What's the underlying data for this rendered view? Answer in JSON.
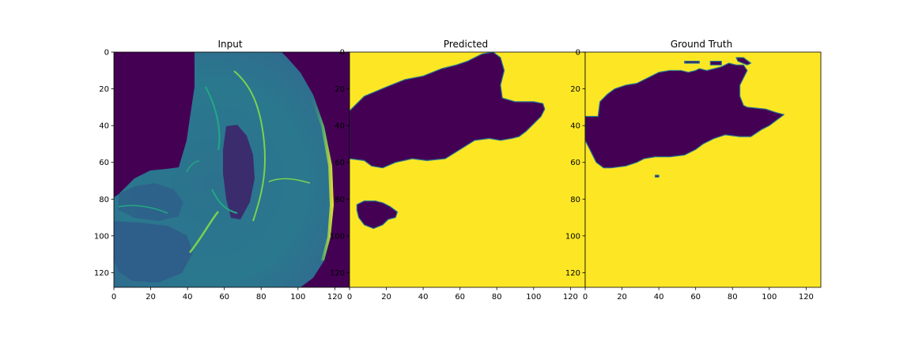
{
  "colors": {
    "dark_purple": "#440154",
    "yellow": "#fde725",
    "teal": "#2a788e",
    "green": "#22a884",
    "light_green": "#7ad151"
  },
  "chart_data": [
    {
      "type": "heatmap",
      "title": "Input",
      "colormap": "viridis",
      "xlim": [
        0,
        128
      ],
      "ylim": [
        128,
        0
      ],
      "xticks": [
        0,
        20,
        40,
        60,
        80,
        100,
        120
      ],
      "yticks": [
        0,
        20,
        40,
        60,
        80,
        100,
        120
      ],
      "xtick_labels": [
        "0",
        "20",
        "40",
        "60",
        "80",
        "100",
        "120"
      ],
      "ytick_labels": [
        "0",
        "20",
        "40",
        "60",
        "80",
        "100",
        "120"
      ],
      "content": "brain MRI slice"
    },
    {
      "type": "heatmap",
      "title": "Predicted",
      "colormap": "viridis",
      "xlim": [
        0,
        128
      ],
      "ylim": [
        128,
        0
      ],
      "xticks": [
        0,
        20,
        40,
        60,
        80,
        100,
        120
      ],
      "yticks": [
        0,
        20,
        40,
        60,
        80,
        100,
        120
      ],
      "xtick_labels": [
        "0",
        "20",
        "40",
        "60",
        "80",
        "100",
        "120"
      ],
      "ytick_labels": [
        "0",
        "20",
        "40",
        "60",
        "80",
        "100",
        "120"
      ],
      "regions": [
        {
          "value": 0,
          "polygon": [
            [
              0,
              32
            ],
            [
              8,
              24
            ],
            [
              20,
              19
            ],
            [
              30,
              15
            ],
            [
              40,
              13
            ],
            [
              50,
              9
            ],
            [
              58,
              7
            ],
            [
              64,
              5
            ],
            [
              72,
              1
            ],
            [
              78,
              0
            ],
            [
              82,
              3
            ],
            [
              84,
              10
            ],
            [
              82,
              18
            ],
            [
              83,
              25
            ],
            [
              90,
              27
            ],
            [
              100,
              27
            ],
            [
              105,
              28
            ],
            [
              106,
              31
            ],
            [
              104,
              35
            ],
            [
              100,
              39
            ],
            [
              96,
              43
            ],
            [
              92,
              46
            ],
            [
              88,
              47
            ],
            [
              82,
              48
            ],
            [
              76,
              47
            ],
            [
              68,
              48
            ],
            [
              60,
              53
            ],
            [
              52,
              58
            ],
            [
              42,
              59
            ],
            [
              34,
              58
            ],
            [
              25,
              60
            ],
            [
              18,
              63
            ],
            [
              12,
              62
            ],
            [
              8,
              59
            ],
            [
              0,
              58
            ]
          ]
        },
        {
          "value": 0,
          "polygon": [
            [
              4,
              83
            ],
            [
              8,
              81
            ],
            [
              14,
              81
            ],
            [
              18,
              82
            ],
            [
              22,
              84
            ],
            [
              26,
              87
            ],
            [
              25,
              90
            ],
            [
              21,
              91
            ],
            [
              18,
              94
            ],
            [
              13,
              96
            ],
            [
              8,
              94
            ],
            [
              5,
              90
            ],
            [
              4,
              86
            ]
          ]
        }
      ]
    },
    {
      "type": "heatmap",
      "title": "Ground Truth",
      "colormap": "viridis",
      "xlim": [
        0,
        128
      ],
      "ylim": [
        128,
        0
      ],
      "xticks": [
        0,
        20,
        40,
        60,
        80,
        100,
        120
      ],
      "yticks": [
        0,
        20,
        40,
        60,
        80,
        100,
        120
      ],
      "xtick_labels": [
        "0",
        "20",
        "40",
        "60",
        "80",
        "100",
        "120"
      ],
      "ytick_labels": [
        "0",
        "20",
        "40",
        "60",
        "80",
        "100",
        "120"
      ],
      "regions": [
        {
          "value": 0,
          "polygon": [
            [
              0,
              35
            ],
            [
              7,
              35
            ],
            [
              8,
              27
            ],
            [
              12,
              23
            ],
            [
              16,
              20
            ],
            [
              22,
              18
            ],
            [
              28,
              17
            ],
            [
              34,
              14
            ],
            [
              40,
              11
            ],
            [
              46,
              10
            ],
            [
              52,
              10
            ],
            [
              56,
              11
            ],
            [
              60,
              10
            ],
            [
              62,
              9
            ],
            [
              66,
              10
            ],
            [
              70,
              9
            ],
            [
              74,
              8
            ],
            [
              78,
              6
            ],
            [
              82,
              7
            ],
            [
              86,
              7
            ],
            [
              88,
              10
            ],
            [
              86,
              14
            ],
            [
              84,
              18
            ],
            [
              84,
              24
            ],
            [
              86,
              29
            ],
            [
              88,
              30
            ],
            [
              98,
              31
            ],
            [
              104,
              33
            ],
            [
              108,
              34
            ],
            [
              104,
              37
            ],
            [
              100,
              40
            ],
            [
              96,
              42
            ],
            [
              90,
              46
            ],
            [
              84,
              46
            ],
            [
              76,
              45
            ],
            [
              70,
              47
            ],
            [
              64,
              50
            ],
            [
              60,
              53
            ],
            [
              54,
              56
            ],
            [
              46,
              57
            ],
            [
              38,
              57
            ],
            [
              32,
              58
            ],
            [
              28,
              60
            ],
            [
              22,
              62
            ],
            [
              14,
              63
            ],
            [
              10,
              63
            ],
            [
              6,
              60
            ],
            [
              2,
              52
            ],
            [
              0,
              48
            ]
          ]
        },
        {
          "value": 0,
          "polygon": [
            [
              54,
              5
            ],
            [
              62,
              5
            ],
            [
              62,
              6
            ],
            [
              54,
              6
            ]
          ]
        },
        {
          "value": 0,
          "polygon": [
            [
              82,
              3
            ],
            [
              86,
              3
            ],
            [
              90,
              6
            ],
            [
              88,
              7
            ],
            [
              83,
              5
            ]
          ]
        },
        {
          "value": 0,
          "polygon": [
            [
              68,
              5
            ],
            [
              74,
              5
            ],
            [
              74,
              7
            ],
            [
              68,
              7
            ]
          ]
        },
        {
          "value": 0,
          "polygon": [
            [
              38,
              67
            ],
            [
              40,
              67
            ],
            [
              40,
              68
            ],
            [
              38,
              68
            ]
          ]
        }
      ]
    }
  ]
}
